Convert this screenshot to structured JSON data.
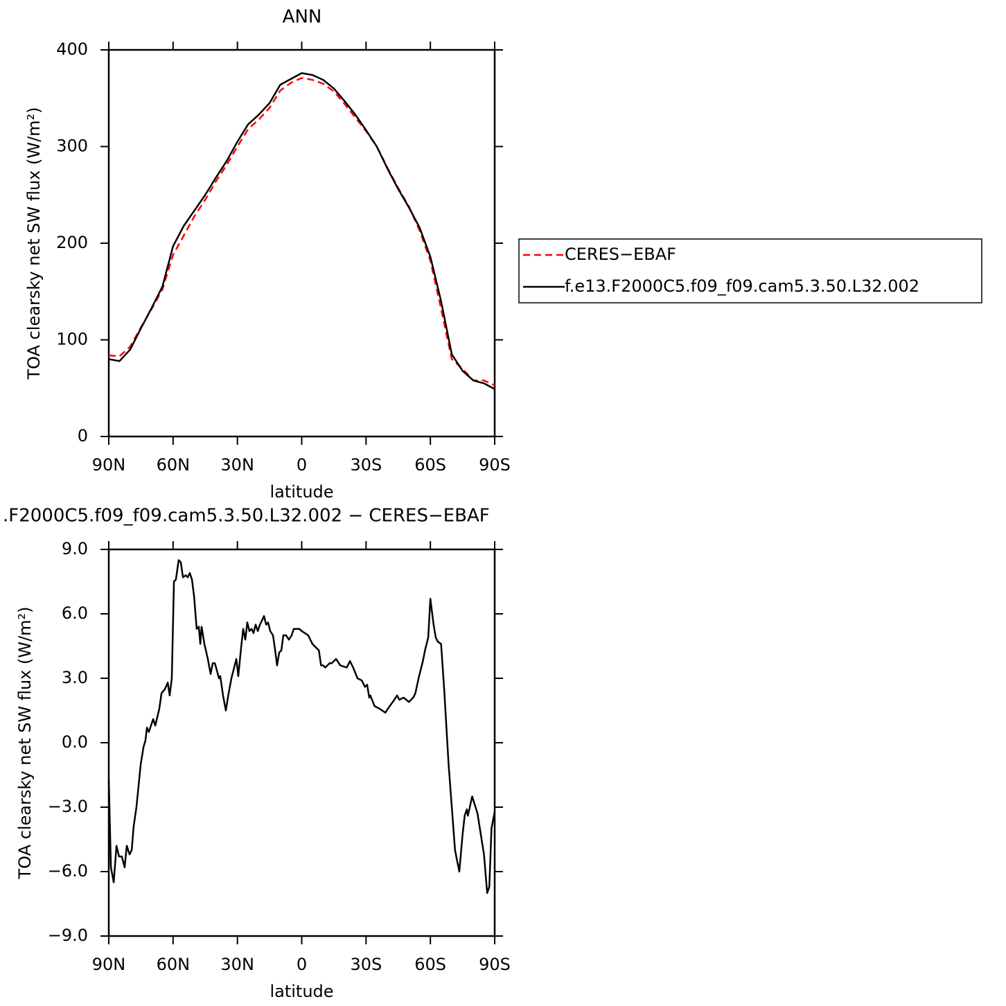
{
  "chart_data": [
    {
      "type": "line",
      "title": "ANN",
      "xlabel": "latitude",
      "ylabel": "TOA clearsky net SW flux (W/m²)",
      "x": [
        90,
        85,
        80,
        75,
        70,
        65,
        60,
        55,
        50,
        45,
        40,
        35,
        30,
        25,
        20,
        15,
        10,
        5,
        0,
        -5,
        -10,
        -15,
        -20,
        -25,
        -30,
        -35,
        -40,
        -45,
        -50,
        -55,
        -60,
        -65,
        -70,
        -75,
        -80,
        -85,
        -90
      ],
      "series": [
        {
          "name": "CERES−EBAF",
          "color": "#ff0000",
          "style": "dashed",
          "values": [
            84,
            83,
            93,
            113,
            132,
            152,
            188,
            208,
            228,
            245,
            264,
            281,
            300,
            318,
            328,
            340,
            358,
            366,
            371,
            369,
            365,
            357,
            344,
            330,
            316,
            300,
            278,
            257,
            238,
            213,
            182,
            132,
            80,
            70,
            58,
            58,
            53
          ]
        },
        {
          "name": "f.e13.F2000C5.f09_f09.cam5.3.50.L32.002",
          "color": "#000000",
          "style": "solid",
          "values": [
            80,
            78,
            90,
            112,
            133,
            155,
            197,
            218,
            234,
            250,
            268,
            285,
            305,
            323,
            333,
            345,
            364,
            370,
            376,
            374,
            369,
            360,
            347,
            333,
            317,
            300,
            277,
            256,
            237,
            216,
            186,
            140,
            85,
            68,
            58,
            55,
            49
          ]
        }
      ],
      "xlim": [
        90,
        -90
      ],
      "xticks": [
        {
          "value": 90,
          "label": "90N"
        },
        {
          "value": 60,
          "label": "60N"
        },
        {
          "value": 30,
          "label": "30N"
        },
        0,
        {
          "value": -30,
          "label": "30S"
        },
        {
          "value": -60,
          "label": "60S"
        },
        {
          "value": -90,
          "label": "90S"
        }
      ],
      "ylim": [
        0,
        400
      ],
      "yticks": [
        0,
        100,
        200,
        300,
        400
      ],
      "legend": "right"
    },
    {
      "type": "line",
      "title": ".F2000C5.f09_f09.cam5.3.50.L32.002 − CERES−EBAF",
      "xlabel": "latitude",
      "ylabel": "TOA clearsky net SW flux (W/m²)",
      "color": "#000000",
      "x": [
        90,
        89,
        87.7,
        86.4,
        85.2,
        83.9,
        82.6,
        81.6,
        80.3,
        79.3,
        78.4,
        77.1,
        75.1,
        73.8,
        72.9,
        72.2,
        71.3,
        69.3,
        68.3,
        66.4,
        65.4,
        63.8,
        62.5,
        61.6,
        60.6,
        59.6,
        58.7,
        57.4,
        56.4,
        55.4,
        54.1,
        53.2,
        52.2,
        51.2,
        50.2,
        49,
        48,
        47.3,
        46.7,
        45.4,
        43.8,
        42.5,
        41.5,
        40.5,
        38.6,
        38,
        36.7,
        35.4,
        34.1,
        32.8,
        30.5,
        29.6,
        28.3,
        27.3,
        26.3,
        25.4,
        24.4,
        23.4,
        22.5,
        21.5,
        20.5,
        19.5,
        18.5,
        17.6,
        16.6,
        15.7,
        14.7,
        13.4,
        12.4,
        11.5,
        10.5,
        9.5,
        8.6,
        7.3,
        6,
        4.7,
        3.7,
        2.4,
        1.1,
        0,
        -3,
        -5,
        -8,
        -9,
        -10,
        -11,
        -13,
        -14,
        -16,
        -18,
        -21,
        -22.5,
        -24,
        -26,
        -28,
        -29.5,
        -30.5,
        -31.5,
        -32,
        -34,
        -36,
        -39,
        -41,
        -42.5,
        -44.5,
        -45.5,
        -47.5,
        -50,
        -52,
        -53,
        -54.5,
        -56.5,
        -57.5,
        -59,
        -60,
        -61.5,
        -62.5,
        -63.5,
        -65,
        -66.5,
        -68.5,
        -70,
        -71.5,
        -73.5,
        -75,
        -76,
        -77,
        -77.5,
        -79.5,
        -82,
        -85,
        -86.5,
        -87.5,
        -88.5,
        -90
      ],
      "values": [
        -1.7,
        -5.8,
        -6.5,
        -4.8,
        -5.3,
        -5.3,
        -5.8,
        -4.8,
        -5.2,
        -5.0,
        -3.9,
        -3.0,
        -1.0,
        -0.2,
        0.1,
        0.7,
        0.5,
        1.1,
        0.8,
        1.6,
        2.3,
        2.5,
        2.8,
        2.2,
        3.0,
        7.5,
        7.6,
        8.5,
        8.4,
        7.7,
        7.8,
        7.7,
        7.9,
        7.6,
        6.8,
        5.3,
        5.4,
        4.6,
        5.4,
        4.6,
        3.9,
        3.2,
        3.7,
        3.7,
        3.0,
        3.1,
        2.2,
        1.5,
        2.3,
        3.0,
        3.9,
        3.1,
        4.4,
        5.3,
        4.8,
        5.6,
        5.2,
        5.3,
        5.1,
        5.5,
        5.2,
        5.5,
        5.7,
        5.9,
        5.5,
        5.6,
        5.2,
        5.0,
        4.3,
        3.6,
        4.2,
        4.3,
        5.0,
        5.0,
        4.8,
        5.0,
        5.3,
        5.3,
        5.3,
        5.2,
        5.0,
        4.6,
        4.3,
        3.6,
        3.6,
        3.5,
        3.7,
        3.7,
        3.9,
        3.6,
        3.5,
        3.8,
        3.5,
        3.0,
        2.9,
        2.6,
        2.7,
        2.1,
        2.2,
        1.7,
        1.6,
        1.4,
        1.7,
        1.9,
        2.2,
        2.0,
        2.1,
        1.9,
        2.1,
        2.3,
        3.0,
        3.8,
        4.3,
        4.9,
        6.7,
        5.5,
        4.9,
        4.7,
        4.6,
        2.4,
        -1.0,
        -3.0,
        -5.0,
        -6.0,
        -4.3,
        -3.4,
        -3.1,
        -3.4,
        -2.5,
        -3.3,
        -5.2,
        -7.0,
        -6.7,
        -4.0,
        -3.2
      ],
      "xlim": [
        90,
        -90
      ],
      "xticks": [
        {
          "value": 90,
          "label": "90N"
        },
        {
          "value": 60,
          "label": "60N"
        },
        {
          "value": 30,
          "label": "30N"
        },
        0,
        {
          "value": -30,
          "label": "30S"
        },
        {
          "value": -60,
          "label": "60S"
        },
        {
          "value": -90,
          "label": "90S"
        }
      ],
      "ylim": [
        -9,
        9
      ],
      "yticks": [
        {
          "value": -9,
          "label": "−9.0"
        },
        {
          "value": -6,
          "label": "−6.0"
        },
        {
          "value": -3,
          "label": "−3.0"
        },
        {
          "value": 0,
          "label": "0.0"
        },
        {
          "value": 3,
          "label": "3.0"
        },
        {
          "value": 6,
          "label": "6.0"
        },
        {
          "value": 9,
          "label": "9.0"
        }
      ]
    }
  ]
}
